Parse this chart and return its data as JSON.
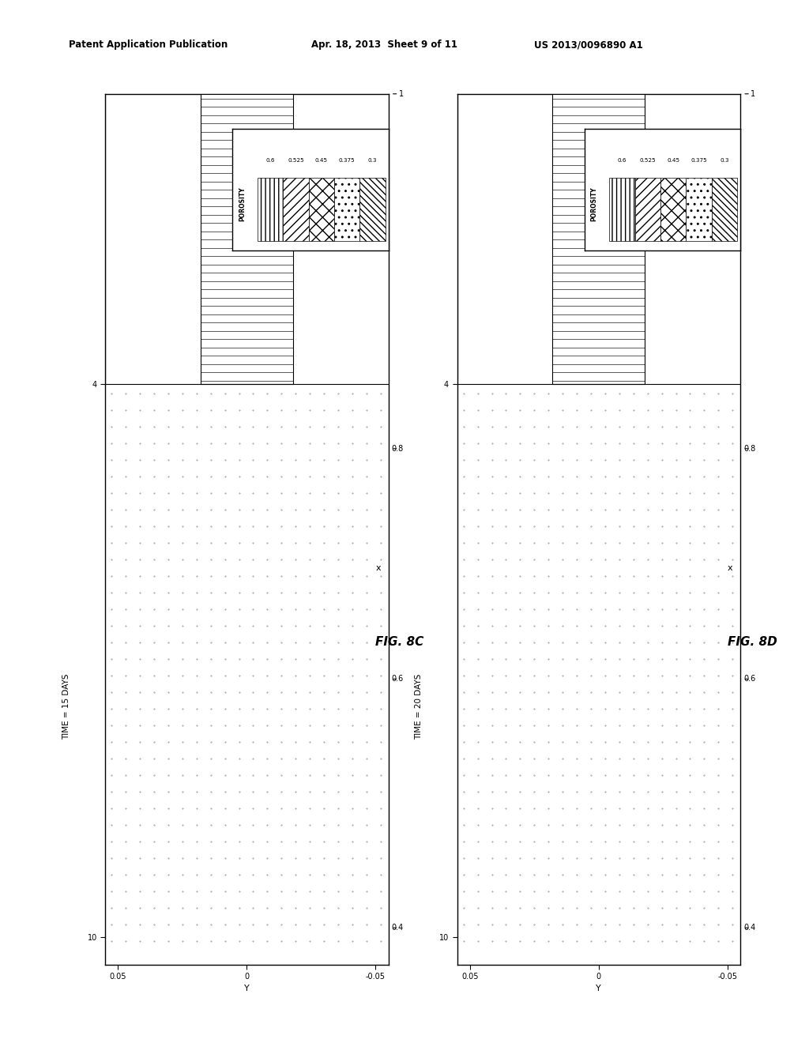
{
  "header_left": "Patent Application Publication",
  "header_mid": "Apr. 18, 2013  Sheet 9 of 11",
  "header_right": "US 2013/0096890 A1",
  "fig_c_label": "FIG. 8C",
  "fig_d_label": "FIG. 8D",
  "time_c": "TIME = 15 DAYS",
  "time_d": "TIME = 20 DAYS",
  "x_label": "x",
  "y_label": "Y",
  "porosity_label": "POROSITY",
  "porosity_values": [
    "0.6",
    "0.525",
    "0.45",
    "0.375",
    "0.3"
  ],
  "bg_color": "#ffffff",
  "reservoir_dot_color": "#bbbbbb",
  "reservoir_bg": "#d0d0d0"
}
